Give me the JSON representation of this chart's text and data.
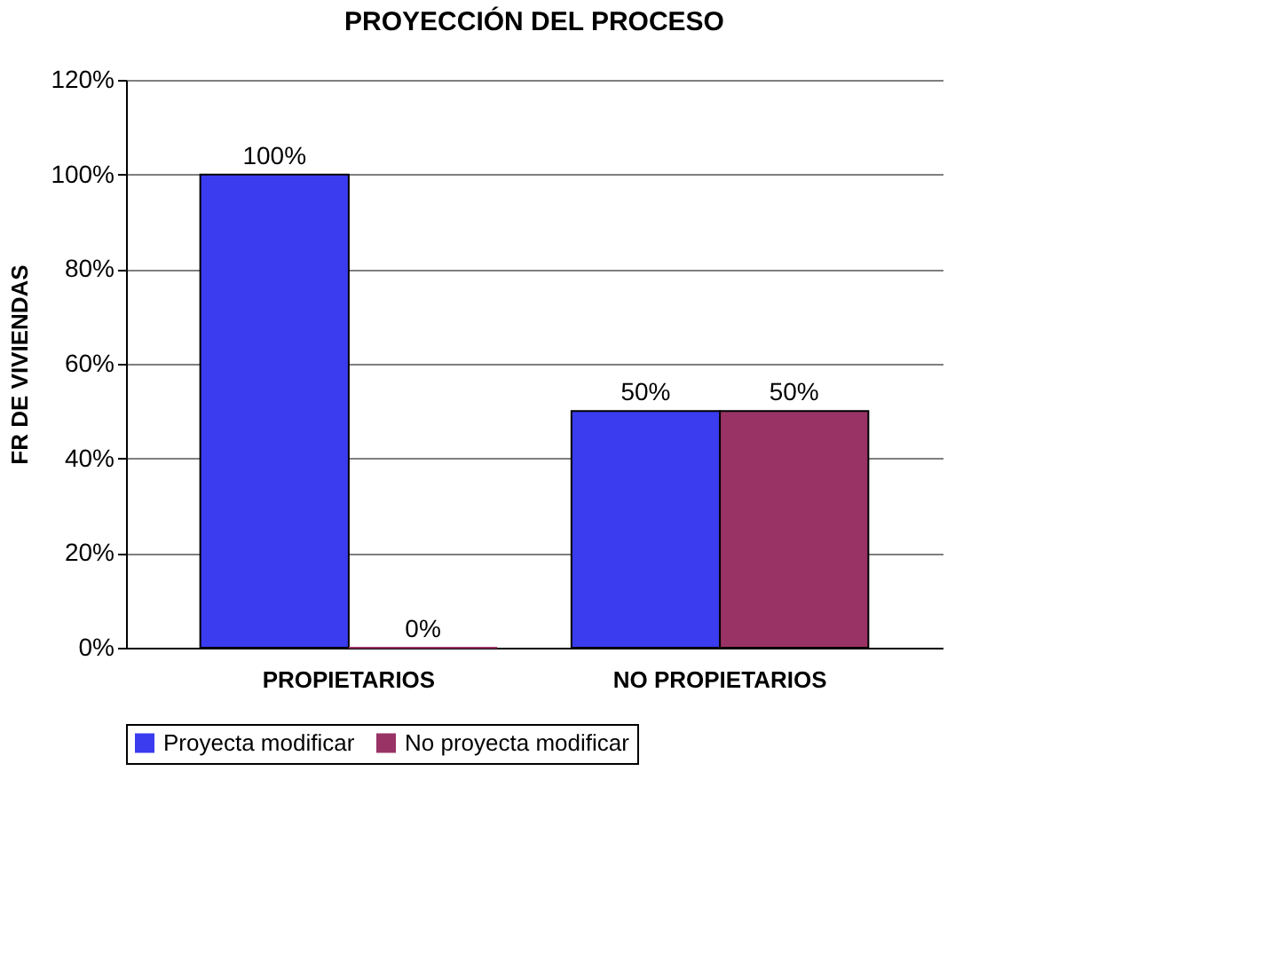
{
  "chart_data": {
    "type": "bar",
    "title": "PROYECCIÓN DEL PROCESO",
    "ylabel": "FR DE VIVIENDAS",
    "categories": [
      "PROPIETARIOS",
      "NO PROPIETARIOS"
    ],
    "series": [
      {
        "name": "Proyecta modificar",
        "color": "#3b3bf0",
        "values": [
          100,
          50
        ],
        "value_labels": [
          "100%",
          "50%"
        ]
      },
      {
        "name": "No proyecta modificar",
        "color": "#993366",
        "values": [
          0,
          50
        ],
        "value_labels": [
          "0%",
          "50%"
        ]
      }
    ],
    "ylim": [
      0,
      120
    ],
    "yticks": [
      {
        "value": 0,
        "label": "0%"
      },
      {
        "value": 20,
        "label": "20%"
      },
      {
        "value": 40,
        "label": "40%"
      },
      {
        "value": 60,
        "label": "60%"
      },
      {
        "value": 80,
        "label": "80%"
      },
      {
        "value": 100,
        "label": "100%"
      },
      {
        "value": 120,
        "label": "120%"
      }
    ],
    "grid": "y",
    "legend": "bottom"
  }
}
